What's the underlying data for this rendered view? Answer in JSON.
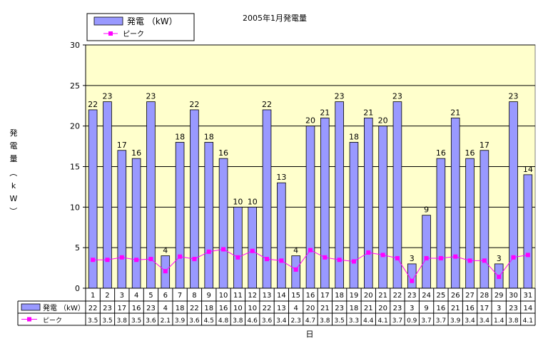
{
  "chart_data": {
    "type": "bar+line",
    "title": "2005年1月発電量",
    "xlabel": "日",
    "ylabel": "発電量（kW）",
    "ylim": [
      0,
      30
    ],
    "yticks": [
      0,
      5,
      10,
      15,
      20,
      25,
      30
    ],
    "grid": true,
    "legend_position": "top-left",
    "categories": [
      "1",
      "2",
      "3",
      "4",
      "5",
      "6",
      "7",
      "8",
      "9",
      "10",
      "11",
      "12",
      "13",
      "14",
      "15",
      "16",
      "17",
      "18",
      "19",
      "20",
      "21",
      "22",
      "23",
      "24",
      "25",
      "26",
      "27",
      "28",
      "29",
      "30",
      "31"
    ],
    "series": [
      {
        "name": "発電 （kW）",
        "type": "bar",
        "color": "#9999ff",
        "values": [
          22,
          23,
          17,
          16,
          23,
          4,
          18,
          22,
          18,
          16,
          10,
          10,
          22,
          13,
          4,
          20,
          21,
          23,
          18,
          21,
          20,
          23,
          3,
          9,
          16,
          21,
          16,
          17,
          3,
          23,
          14
        ]
      },
      {
        "name": "ピーク",
        "type": "line",
        "color": "#ff00ff",
        "values": [
          3.5,
          3.5,
          3.8,
          3.5,
          3.6,
          2.1,
          3.9,
          3.6,
          4.5,
          4.8,
          3.8,
          4.6,
          3.6,
          3.4,
          2.3,
          4.7,
          3.8,
          3.5,
          3.3,
          4.4,
          4.1,
          3.7,
          0.9,
          3.7,
          3.7,
          3.9,
          3.4,
          3.4,
          1.4,
          3.8,
          4.1
        ]
      }
    ],
    "colors": {
      "plot_background": "#ffffcc",
      "bar_fill": "#9999ff",
      "line": "#ff00ff"
    }
  }
}
